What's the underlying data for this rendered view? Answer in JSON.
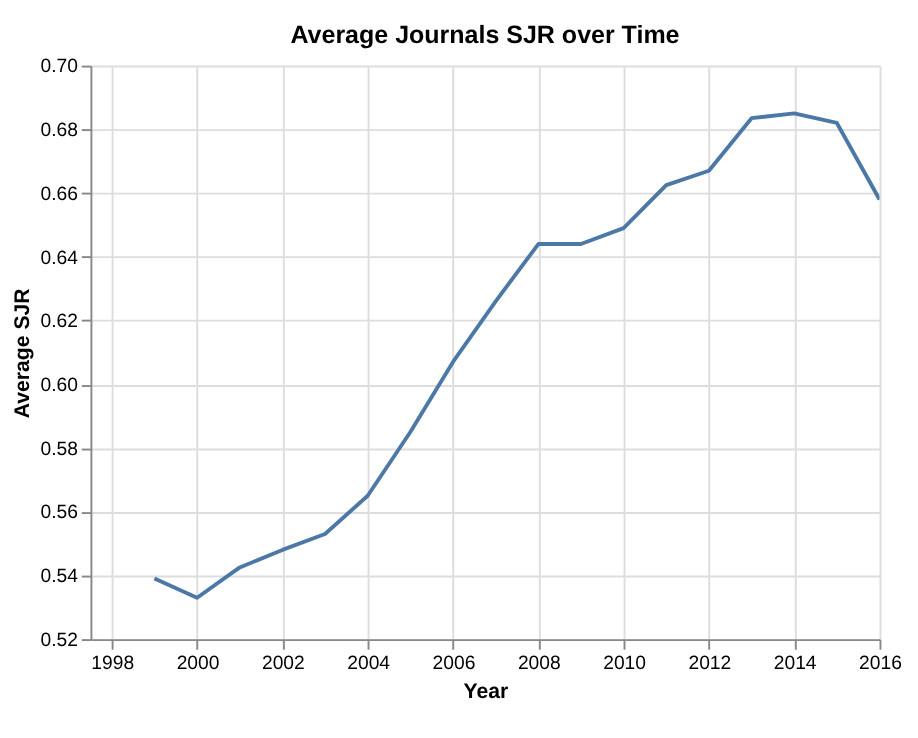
{
  "chart_data": {
    "type": "line",
    "title": "Average Journals SJR over Time",
    "xlabel": "Year",
    "ylabel": "Average SJR",
    "x": [
      1999,
      2000,
      2001,
      2002,
      2003,
      2004,
      2005,
      2006,
      2007,
      2008,
      2009,
      2010,
      2011,
      2012,
      2013,
      2014,
      2015,
      2016
    ],
    "series": [
      {
        "color": "#4c78a8",
        "values": [
          0.539,
          0.533,
          0.5425,
          0.548,
          0.553,
          0.565,
          0.585,
          0.607,
          0.626,
          0.644,
          0.644,
          0.649,
          0.6625,
          0.667,
          0.6835,
          0.685,
          0.682,
          0.658
        ]
      }
    ],
    "xlim": [
      1997.5,
      2016
    ],
    "xticks": [
      1998,
      2000,
      2002,
      2004,
      2006,
      2008,
      2010,
      2012,
      2014,
      2016
    ],
    "ylim": [
      0.52,
      0.7
    ],
    "yticks": [
      0.52,
      0.54,
      0.56,
      0.58,
      {
        "value": 0.6,
        "label": "0.60"
      },
      0.62,
      0.64,
      0.66,
      0.68,
      {
        "value": 0.7,
        "label": "0.70"
      }
    ],
    "grid": true,
    "marker": "none",
    "line_style": "solid"
  }
}
